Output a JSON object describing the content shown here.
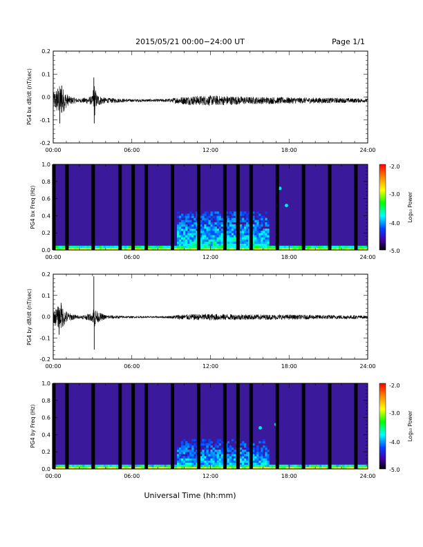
{
  "header": {
    "title": "2015/05/21  00:00−24:00 UT",
    "page": "Page 1/1"
  },
  "x_axis": {
    "title": "Universal Time (hh:mm)",
    "ticks": [
      "00:00",
      "06:00",
      "12:00",
      "18:00",
      "24:00"
    ]
  },
  "colorbar": {
    "label": "Log₁₀ Power",
    "ticks": [
      "-2.0",
      "-3.0",
      "-4.0",
      "-5.0"
    ],
    "colors": [
      "#ff0000",
      "#ff8800",
      "#ffff00",
      "#00ff00",
      "#00ffff",
      "#0044ff",
      "#4400aa",
      "#000000"
    ]
  },
  "chart_data": [
    {
      "type": "line",
      "title": "",
      "ylabel": "PG4 bx dB/dt (nT/sec)",
      "xlabel": "Universal Time (hh:mm)",
      "xlim": [
        0,
        24
      ],
      "ylim": [
        -0.2,
        0.2
      ],
      "y_ticks": [
        "0.2",
        "0.1",
        "0.0",
        "-0.1",
        "-0.2"
      ],
      "baseline": -0.015,
      "envelope": {
        "x": [
          0,
          0.3,
          0.6,
          0.9,
          1.2,
          2.0,
          3.0,
          3.1,
          3.3,
          3.6,
          4.0,
          6.0,
          8.0,
          9.0,
          9.5,
          10.5,
          12.0,
          13.5,
          15.0,
          17.0,
          19.0,
          21.0,
          23.0,
          24.0
        ],
        "y": [
          0.03,
          0.06,
          0.07,
          0.04,
          0.02,
          0.008,
          0.02,
          0.09,
          0.03,
          0.02,
          0.012,
          0.006,
          0.006,
          0.008,
          0.015,
          0.02,
          0.022,
          0.02,
          0.016,
          0.015,
          0.013,
          0.012,
          0.01,
          0.008
        ]
      },
      "spikes": [
        {
          "x": 0.5,
          "y": -0.115
        },
        {
          "x": 0.65,
          "y": 0.05
        },
        {
          "x": 3.1,
          "y": 0.085
        },
        {
          "x": 3.13,
          "y": -0.115
        }
      ]
    },
    {
      "type": "heatmap",
      "title": "",
      "ylabel": "PG4 bx Freq (Hz)",
      "xlabel": "Universal Time (hh:mm)",
      "xlim": [
        0,
        24
      ],
      "ylim": [
        0,
        1.0
      ],
      "y_ticks": [
        "1.0",
        "0.8",
        "0.6",
        "0.4",
        "0.2",
        "0.0"
      ],
      "zlim": [
        -5.0,
        -2.0
      ],
      "gap_hours": [
        0.05,
        1.05,
        3.05,
        5.1,
        6.1,
        7.1,
        9.1,
        11.1,
        13.1,
        14.1,
        15.1,
        17.1,
        19.1,
        21.1,
        23.1
      ],
      "active_bands": [
        {
          "x": [
            0,
            24
          ],
          "f": [
            0,
            0.05
          ],
          "level": -3.2
        },
        {
          "x": [
            9.5,
            16.5
          ],
          "f": [
            0.05,
            0.45
          ],
          "level": -3.8
        }
      ],
      "events": [
        {
          "x": 17.3,
          "f": 0.72
        },
        {
          "x": 17.8,
          "f": 0.52
        }
      ]
    },
    {
      "type": "line",
      "title": "",
      "ylabel": "PG4 by dB/dt (nT/sec)",
      "xlabel": "Universal Time (hh:mm)",
      "xlim": [
        0,
        24
      ],
      "ylim": [
        -0.2,
        0.2
      ],
      "y_ticks": [
        "0.2",
        "0.1",
        "0.0",
        "-0.1",
        "-0.2"
      ],
      "baseline": -0.002,
      "envelope": {
        "x": [
          0,
          0.3,
          0.6,
          0.9,
          1.2,
          2.0,
          3.0,
          3.1,
          3.3,
          3.6,
          4.0,
          6.0,
          8.0,
          9.0,
          9.5,
          10.5,
          12.0,
          13.5,
          15.0,
          17.0,
          19.0,
          21.0,
          23.0,
          24.0
        ],
        "y": [
          0.025,
          0.05,
          0.06,
          0.035,
          0.02,
          0.006,
          0.02,
          0.06,
          0.03,
          0.02,
          0.01,
          0.004,
          0.004,
          0.006,
          0.012,
          0.014,
          0.016,
          0.014,
          0.013,
          0.012,
          0.011,
          0.01,
          0.009,
          0.007
        ]
      },
      "spikes": [
        {
          "x": 0.45,
          "y": -0.085
        },
        {
          "x": 0.6,
          "y": 0.065
        },
        {
          "x": 3.1,
          "y": 0.19
        },
        {
          "x": 3.13,
          "y": -0.155
        }
      ]
    },
    {
      "type": "heatmap",
      "title": "",
      "ylabel": "PG4 by Freq (Hz)",
      "xlabel": "Universal Time (hh:mm)",
      "xlim": [
        0,
        24
      ],
      "ylim": [
        0,
        1.0
      ],
      "y_ticks": [
        "1.0",
        "0.8",
        "0.6",
        "0.4",
        "0.2",
        "0.0"
      ],
      "zlim": [
        -5.0,
        -2.0
      ],
      "gap_hours": [
        0.05,
        1.05,
        3.05,
        5.1,
        6.1,
        7.1,
        9.1,
        11.1,
        13.1,
        14.1,
        15.1,
        17.1,
        19.1,
        21.1,
        23.1
      ],
      "active_bands": [
        {
          "x": [
            0,
            24
          ],
          "f": [
            0,
            0.05
          ],
          "level": -3.3
        },
        {
          "x": [
            9.5,
            16.5
          ],
          "f": [
            0.05,
            0.35
          ],
          "level": -3.9
        }
      ],
      "events": [
        {
          "x": 15.8,
          "f": 0.48
        },
        {
          "x": 17.0,
          "f": 0.52
        }
      ]
    }
  ]
}
